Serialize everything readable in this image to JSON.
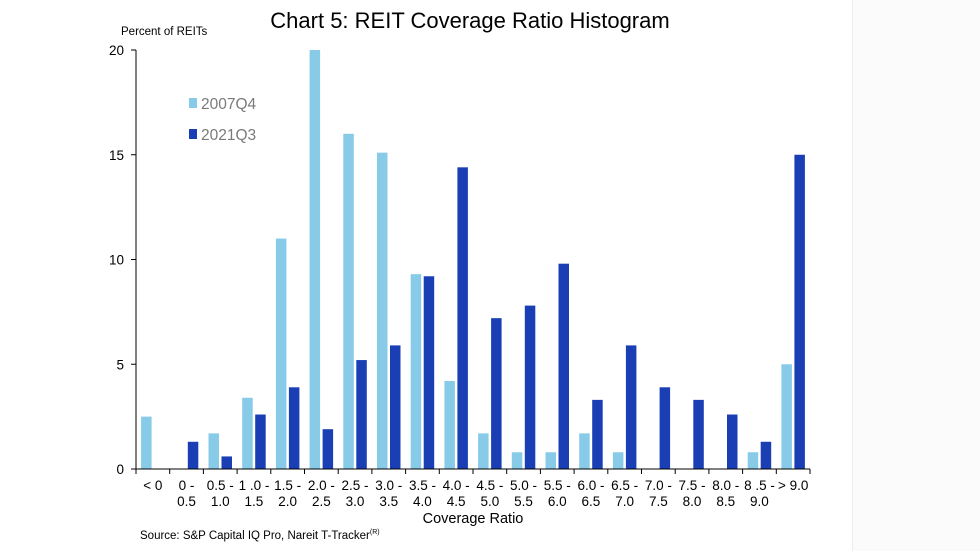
{
  "chart_data": {
    "type": "bar",
    "title": "Chart 5: REIT Coverage Ratio Histogram",
    "ylabel": "Percent of REITs",
    "xlabel": "Coverage Ratio",
    "source": "Source: S&P Capital IQ Pro, Nareit T-Tracker",
    "source_sup": "(R)",
    "ylim": [
      0,
      20
    ],
    "yticks": [
      0,
      5,
      10,
      15,
      20
    ],
    "grid": false,
    "legend_position": "top-left",
    "categories": [
      [
        "< 0",
        ""
      ],
      [
        "0 -",
        "0.5"
      ],
      [
        "0.5 -",
        "1.0"
      ],
      [
        "1 .0 -",
        "1.5"
      ],
      [
        "1.5 -",
        "2.0"
      ],
      [
        "2.0 -",
        "2.5"
      ],
      [
        "2.5 -",
        "3.0"
      ],
      [
        "3.0 -",
        "3.5"
      ],
      [
        "3.5 -",
        "4.0"
      ],
      [
        "4.0 -",
        "4.5"
      ],
      [
        "4.5 -",
        "5.0"
      ],
      [
        "5.0 -",
        "5.5"
      ],
      [
        "5.5 -",
        "6.0"
      ],
      [
        "6.0 -",
        "6.5"
      ],
      [
        "6.5 -",
        "7.0"
      ],
      [
        "7.0 -",
        "7.5"
      ],
      [
        "7.5 -",
        "8.0"
      ],
      [
        "8.0 -",
        "8.5"
      ],
      [
        "8 .5 -",
        "9.0"
      ],
      [
        "> 9.0",
        ""
      ]
    ],
    "series": [
      {
        "name": "2007Q4",
        "color": "#87cbe8",
        "values": [
          2.5,
          0,
          1.7,
          3.4,
          11.0,
          20.0,
          16.0,
          15.1,
          9.3,
          4.2,
          1.7,
          0.8,
          0.8,
          1.7,
          0.8,
          0,
          0,
          0,
          0.8,
          5.0
        ]
      },
      {
        "name": "2021Q3",
        "color": "#1a3fb5",
        "values": [
          0,
          1.3,
          0.6,
          2.6,
          3.9,
          1.9,
          5.2,
          5.9,
          9.2,
          14.4,
          7.2,
          7.8,
          9.8,
          3.3,
          5.9,
          3.9,
          3.3,
          2.6,
          1.3,
          15.0
        ]
      }
    ]
  }
}
